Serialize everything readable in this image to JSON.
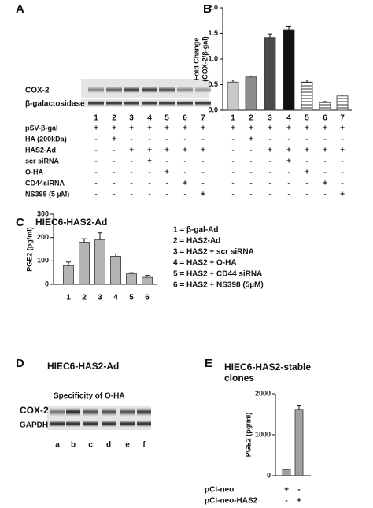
{
  "panel_labels": [
    "A",
    "B",
    "C",
    "D",
    "E"
  ],
  "blot_a": {
    "rows": [
      "COX-2",
      "β-galactosidase"
    ],
    "lanes": [
      "1",
      "2",
      "3",
      "4",
      "5",
      "6",
      "7"
    ]
  },
  "treatments": [
    {
      "label": "pSV-β-gal",
      "signs": [
        "+",
        "+",
        "+",
        "+",
        "+",
        "+",
        "+"
      ]
    },
    {
      "label": "HA (200kDa)",
      "signs": [
        "-",
        "+",
        "-",
        "-",
        "-",
        "-",
        "-"
      ]
    },
    {
      "label": "HAS2-Ad",
      "signs": [
        "-",
        "-",
        "+",
        "+",
        "+",
        "+",
        "+"
      ]
    },
    {
      "label": "scr siRNA",
      "signs": [
        "-",
        "-",
        "-",
        "+",
        "-",
        "-",
        "-"
      ]
    },
    {
      "label": "O-HA",
      "signs": [
        "-",
        "-",
        "-",
        "-",
        "+",
        "-",
        "-"
      ]
    },
    {
      "label": "CD44siRNA",
      "signs": [
        "-",
        "-",
        "-",
        "-",
        "-",
        "+",
        "-"
      ]
    },
    {
      "label": "NS398 (5 µM)",
      "signs": [
        "-",
        "-",
        "-",
        "-",
        "-",
        "-",
        "+"
      ]
    }
  ],
  "legend_c": [
    "1 = β-gal-Ad",
    "2 = HAS2-Ad",
    "3 = HAS2 + scr siRNA",
    "4 = HAS2 + O-HA",
    "5 = HAS2 + CD44 siRNA",
    "6 = HAS2 + NS398 (5µM)"
  ],
  "blot_d": {
    "title": "HIEC6-HAS2-Ad",
    "subtitle": "Specificity of O-HA",
    "rows": [
      "COX-2",
      "GAPDH"
    ],
    "lanes": [
      "a",
      "b",
      "c",
      "d",
      "e",
      "f"
    ]
  },
  "chart_data": [
    {
      "type": "bar",
      "y_label": [
        "Fold Change",
        "(COX-2/β-gal)"
      ],
      "categories": [
        "1",
        "2",
        "3",
        "4",
        "5",
        "6",
        "7"
      ],
      "values": [
        0.55,
        0.65,
        1.42,
        1.57,
        0.55,
        0.15,
        0.28
      ],
      "errors": [
        0.04,
        0.02,
        0.07,
        0.07,
        0.04,
        0.02,
        0.02
      ],
      "colors": [
        "#c8c8c8",
        "#8c8c8c",
        "#4a4a4a",
        "#111111",
        "#ffffff",
        "#ffffff",
        "#ffffff"
      ],
      "hatch": [
        false,
        false,
        false,
        false,
        true,
        true,
        true
      ],
      "ylim": [
        0,
        2
      ],
      "yticks": [
        {
          "value": 0,
          "label": "0.0"
        },
        {
          "value": 0.5,
          "label": "0.5"
        },
        {
          "value": 1,
          "label": "1.0"
        },
        {
          "value": 1.5,
          "label": "1.5"
        },
        {
          "value": 2,
          "label": "2.0"
        }
      ]
    },
    {
      "type": "bar",
      "title": "HIEC6-HAS2-Ad",
      "y_label": [
        "PGE2 (pg/ml)"
      ],
      "categories": [
        "1",
        "2",
        "3",
        "4",
        "5",
        "6"
      ],
      "values": [
        80,
        180,
        190,
        120,
        45,
        30
      ],
      "errors": [
        15,
        15,
        30,
        10,
        5,
        8
      ],
      "color": "#b4b4b4",
      "ylim": [
        0,
        300
      ],
      "yticks": [
        0,
        100,
        200,
        300
      ]
    },
    {
      "type": "bar",
      "title": [
        "HIEC6-HAS2-stable",
        "clones"
      ],
      "y_label": [
        "PGE2 (pg/ml)"
      ],
      "values": [
        150,
        1620
      ],
      "errors": [
        10,
        100
      ],
      "color": "#a0a0a0",
      "ylim": [
        0,
        2000
      ],
      "yticks": [
        0,
        1000,
        2000
      ],
      "treatments": [
        {
          "label": "pCI-neo",
          "signs": [
            "+",
            "-"
          ]
        },
        {
          "label": "pCI-neo-HAS2",
          "signs": [
            "-",
            "+"
          ]
        }
      ]
    }
  ]
}
